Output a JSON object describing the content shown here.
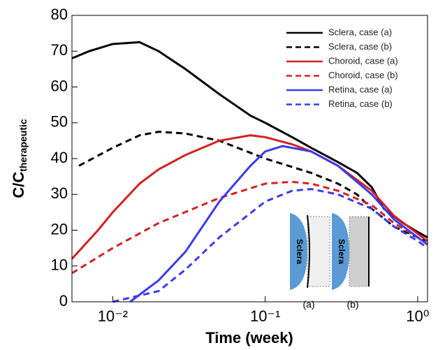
{
  "chart_data": {
    "type": "line",
    "x_label": "Time (week)",
    "y_label": "C/C",
    "y_label_subscript": "therapeutic",
    "xlim": [
      0.0054,
      1.16
    ],
    "ylim": [
      0,
      80
    ],
    "x_log": true,
    "xticks": [
      {
        "value": 0.01,
        "label": "10⁻²"
      },
      {
        "value": 0.1,
        "label": "10⁻¹"
      },
      {
        "value": 1,
        "label": "10⁰"
      }
    ],
    "yticks": [
      0,
      10,
      20,
      30,
      40,
      50,
      60,
      70,
      80
    ],
    "legend": "top-right",
    "series": [
      {
        "name": "Sclera, case (a)",
        "color": "#000000",
        "dash": false,
        "x": [
          0.0054,
          0.007,
          0.01,
          0.015,
          0.02,
          0.03,
          0.05,
          0.08,
          0.1,
          0.15,
          0.2,
          0.3,
          0.4,
          0.5,
          0.6,
          0.8,
          1.0,
          1.16
        ],
        "values": [
          68,
          70,
          72,
          72.5,
          70,
          65,
          58,
          52,
          50,
          46,
          43,
          39,
          36,
          32,
          26,
          22,
          19.5,
          18
        ]
      },
      {
        "name": "Sclera, case (b)",
        "color": "#000000",
        "dash": true,
        "x": [
          0.006,
          0.01,
          0.015,
          0.02,
          0.03,
          0.05,
          0.1,
          0.2,
          0.3,
          0.4,
          0.5,
          0.7,
          1.0,
          1.16
        ],
        "values": [
          38,
          43,
          46.5,
          47.5,
          47,
          45,
          40,
          36,
          33,
          30,
          26,
          21,
          18,
          17
        ]
      },
      {
        "name": "Choroid, case (a)",
        "color": "#d42020",
        "dash": false,
        "x": [
          0.0054,
          0.008,
          0.01,
          0.015,
          0.02,
          0.03,
          0.05,
          0.08,
          0.1,
          0.15,
          0.2,
          0.3,
          0.5,
          0.7,
          1.0,
          1.16
        ],
        "values": [
          12,
          20,
          25,
          33,
          37,
          41,
          45,
          46.5,
          46,
          44,
          42,
          38,
          31,
          24,
          19,
          17
        ]
      },
      {
        "name": "Choroid, case (b)",
        "color": "#d42020",
        "dash": true,
        "x": [
          0.0054,
          0.01,
          0.02,
          0.05,
          0.1,
          0.15,
          0.2,
          0.3,
          0.5,
          0.7,
          1.0,
          1.16
        ],
        "values": [
          8,
          15,
          22,
          29,
          33,
          33.5,
          33,
          31,
          27,
          22,
          18,
          16
        ]
      },
      {
        "name": "Retina, case (a)",
        "color": "#3a3af0",
        "dash": false,
        "x": [
          0.013,
          0.02,
          0.03,
          0.05,
          0.08,
          0.1,
          0.13,
          0.2,
          0.3,
          0.5,
          0.7,
          1.0,
          1.16
        ],
        "values": [
          0,
          6,
          14,
          28,
          38,
          42,
          43.5,
          42,
          38,
          30,
          23,
          18,
          16
        ]
      },
      {
        "name": "Retina, case (b)",
        "color": "#3a3af0",
        "dash": true,
        "x": [
          0.01,
          0.02,
          0.03,
          0.05,
          0.1,
          0.15,
          0.2,
          0.3,
          0.5,
          0.7,
          1.0,
          1.16
        ],
        "values": [
          0,
          3,
          9,
          18,
          28,
          31,
          31.5,
          30,
          26,
          21,
          17,
          15
        ]
      }
    ]
  },
  "inset": {
    "tissue": "Sclera",
    "label_a": "(a)",
    "label_b": "(b)"
  }
}
